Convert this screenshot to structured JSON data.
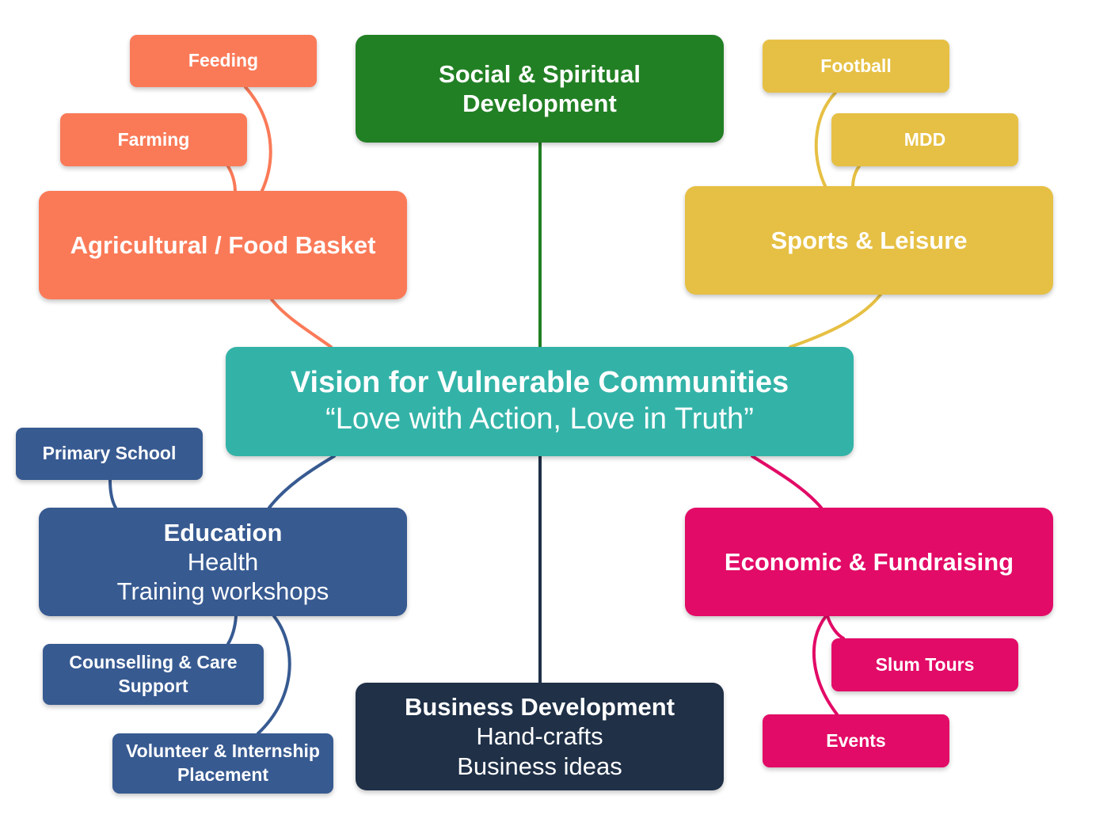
{
  "center": {
    "title": "Vision for Vulnerable Communities",
    "subtitle": "“Love with Action, Love in Truth”",
    "color": "#33b3a8"
  },
  "branches": {
    "agri": {
      "title": "Agricultural / Food Basket",
      "color": "#fa7a58",
      "children": [
        "Feeding",
        "Farming"
      ]
    },
    "social": {
      "title": "Social & Spiritual Development",
      "color": "#228024"
    },
    "sports": {
      "title": "Sports & Leisure",
      "color": "#e6c044",
      "children": [
        "Football",
        "MDD"
      ]
    },
    "education": {
      "title": "Education",
      "lines": [
        "Health",
        "Training workshops"
      ],
      "color": "#375a91",
      "children": [
        "Primary School",
        "Counselling & Care Support",
        "Volunteer & Internship Placement"
      ]
    },
    "business": {
      "title": "Business Development",
      "lines": [
        "Hand-crafts",
        "Business ideas"
      ],
      "color": "#1f3047"
    },
    "economic": {
      "title": "Economic & Fundraising",
      "color": "#e20b67",
      "children": [
        "Slum Tours",
        "Events"
      ]
    }
  }
}
